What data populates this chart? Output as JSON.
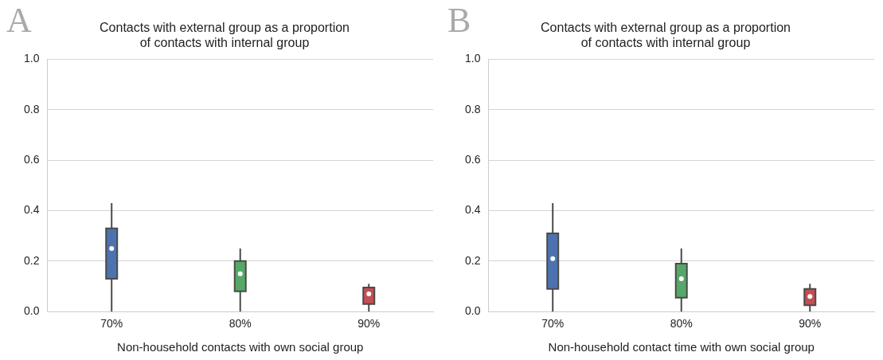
{
  "chart_data": [
    {
      "type": "box",
      "title": "Contacts with external group as a proportion\nof contacts with internal group",
      "xlabel": "Non-household contacts with own social group",
      "categories": [
        "70%",
        "80%",
        "90%"
      ],
      "colors": [
        "#4c72b0",
        "#55a868",
        "#c44e52"
      ],
      "boxes": [
        {
          "low": 0,
          "q1": 0.13,
          "median": 0.25,
          "q3": 0.33,
          "high": 0.43
        },
        {
          "low": 0,
          "q1": 0.08,
          "median": 0.15,
          "q3": 0.2,
          "high": 0.25
        },
        {
          "low": 0,
          "q1": 0.03,
          "median": 0.07,
          "q3": 0.095,
          "high": 0.11
        }
      ],
      "ylim": [
        0,
        1
      ],
      "yticks": [
        {
          "value": 0,
          "label": "0.0"
        },
        {
          "value": 0.2,
          "label": "0.2"
        },
        {
          "value": 0.4,
          "label": "0.4"
        },
        {
          "value": 0.6,
          "label": "0.6"
        },
        {
          "value": 0.8,
          "label": "0.8"
        },
        {
          "value": 1,
          "label": "1.0"
        }
      ],
      "grid": "y",
      "annotations": [
        "A"
      ]
    },
    {
      "type": "box",
      "title": "Contacts with external group as a proportion\nof contacts with internal group",
      "xlabel": "Non-household contact time with own social group",
      "categories": [
        "70%",
        "80%",
        "90%"
      ],
      "colors": [
        "#4c72b0",
        "#55a868",
        "#c44e52"
      ],
      "boxes": [
        {
          "low": 0,
          "q1": 0.09,
          "median": 0.21,
          "q3": 0.31,
          "high": 0.43
        },
        {
          "low": 0,
          "q1": 0.055,
          "median": 0.13,
          "q3": 0.19,
          "high": 0.25
        },
        {
          "low": 0,
          "q1": 0.025,
          "median": 0.06,
          "q3": 0.09,
          "high": 0.11
        }
      ],
      "ylim": [
        0,
        1
      ],
      "yticks": [
        {
          "value": 0,
          "label": "0.0"
        },
        {
          "value": 0.2,
          "label": "0.2"
        },
        {
          "value": 0.4,
          "label": "0.4"
        },
        {
          "value": 0.6,
          "label": "0.6"
        },
        {
          "value": 0.8,
          "label": "0.8"
        },
        {
          "value": 1,
          "label": "1.0"
        }
      ],
      "grid": "y",
      "annotations": [
        "B"
      ]
    }
  ]
}
